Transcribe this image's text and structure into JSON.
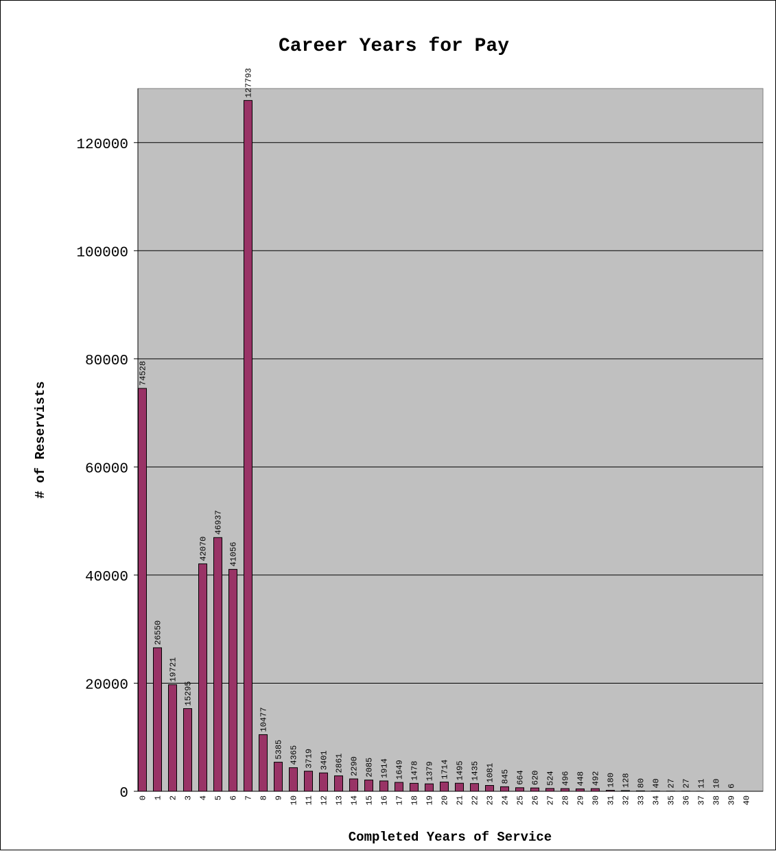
{
  "chart_data": {
    "type": "bar",
    "title": "Career Years for Pay",
    "xlabel": "Completed Years of Service",
    "ylabel": "# of Reservists",
    "ylim": [
      0,
      130000
    ],
    "yticks": [
      0,
      20000,
      40000,
      60000,
      80000,
      100000,
      120000
    ],
    "grid": true,
    "legend": "none",
    "categories": [
      "0",
      "1",
      "2",
      "3",
      "4",
      "5",
      "6",
      "7",
      "8",
      "9",
      "10",
      "11",
      "12",
      "13",
      "14",
      "15",
      "16",
      "17",
      "18",
      "19",
      "20",
      "21",
      "22",
      "23",
      "24",
      "25",
      "26",
      "27",
      "28",
      "29",
      "30",
      "31",
      "32",
      "33",
      "34",
      "35",
      "36",
      "37",
      "38",
      "39",
      "40"
    ],
    "values": [
      74528,
      26550,
      19721,
      15295,
      42070,
      46937,
      41056,
      127793,
      10477,
      5385,
      4365,
      3719,
      3401,
      2861,
      2290,
      2085,
      1914,
      1649,
      1478,
      1379,
      1714,
      1495,
      1435,
      1081,
      845,
      664,
      620,
      524,
      496,
      448,
      492,
      180,
      128,
      80,
      40,
      27,
      27,
      11,
      10,
      6,
      null
    ],
    "colors": {
      "bar": "#993366",
      "plot_background": "#c0c0c0",
      "gridline": "#000000"
    }
  }
}
